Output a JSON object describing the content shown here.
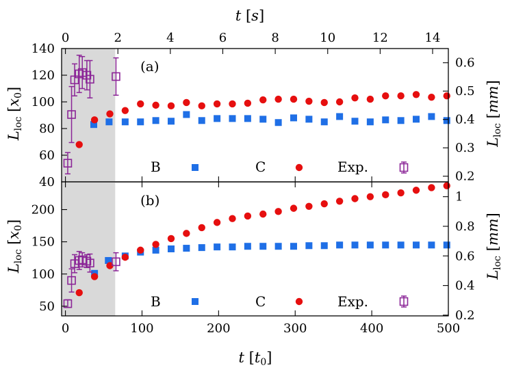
{
  "chart_data": [
    {
      "panel": "(a)",
      "type": "scatter",
      "x_bottom_label": "t [t0]",
      "x_top_label": "t [s]",
      "y_left_label": "Lloc [x0]",
      "y_right_label": "Lloc [mm]",
      "xlim": [
        -5,
        500
      ],
      "ylim": [
        40,
        140
      ],
      "y_right_lim": [
        0.18,
        0.65
      ],
      "y_left_ticks": [
        40,
        60,
        80,
        100,
        120,
        140
      ],
      "y_right_ticks": [
        0.2,
        0.3,
        0.4,
        0.5,
        0.6
      ],
      "shaded_region": [
        -5,
        65
      ],
      "legend": [
        "B",
        "C",
        "Exp."
      ],
      "series": [
        {
          "name": "B",
          "marker": "square",
          "color": "#1f6fe6",
          "x": [
            37,
            57,
            78,
            98,
            118,
            138,
            158,
            178,
            198,
            218,
            238,
            258,
            278,
            298,
            318,
            338,
            358,
            378,
            398,
            418,
            438,
            458,
            478,
            498
          ],
          "y": [
            83,
            85,
            85,
            85,
            86,
            85.5,
            90.5,
            86,
            87.5,
            87.5,
            87.5,
            87,
            84.5,
            88,
            87,
            85,
            89,
            85.5,
            85,
            86.5,
            86,
            87,
            89,
            86
          ]
        },
        {
          "name": "C",
          "marker": "circle",
          "color": "#e60f0f",
          "x": [
            18,
            38,
            58,
            78,
            98,
            118,
            138,
            158,
            178,
            198,
            218,
            238,
            258,
            278,
            298,
            318,
            338,
            358,
            378,
            398,
            418,
            438,
            458,
            478,
            498
          ],
          "y": [
            68,
            86.5,
            91,
            93.5,
            98.5,
            97.5,
            97,
            99.5,
            97,
            98.5,
            98.5,
            99,
            101.5,
            102,
            102,
            100.5,
            99.5,
            100,
            103,
            102,
            104.5,
            104.5,
            105.5,
            103.5,
            104.5
          ]
        },
        {
          "name": "Exp.",
          "marker": "open-square",
          "color": "#8b2597",
          "x": [
            3,
            8,
            12,
            18,
            22,
            28,
            32,
            66
          ],
          "y": [
            54,
            90.5,
            116.5,
            121,
            122,
            120,
            117,
            119
          ],
          "yerr": [
            8,
            21,
            12,
            14,
            12,
            11,
            14,
            14
          ]
        }
      ]
    },
    {
      "panel": "(b)",
      "type": "scatter",
      "x_bottom_label": "t [t0]",
      "y_left_label": "Lloc [x0]",
      "y_right_label": "Lloc [mm]",
      "xlim": [
        -5,
        500
      ],
      "ylim": [
        35,
        243
      ],
      "y_right_lim": [
        0.195,
        1.1
      ],
      "x_ticks": [
        0,
        100,
        200,
        300,
        400,
        500
      ],
      "y_left_ticks": [
        50,
        100,
        150,
        200
      ],
      "y_right_ticks": [
        0.2,
        0.4,
        0.6,
        0.8,
        1.0
      ],
      "shaded_region": [
        -5,
        65
      ],
      "legend": [
        "B",
        "C",
        "Exp."
      ],
      "series": [
        {
          "name": "B",
          "marker": "square",
          "color": "#1f6fe6",
          "x": [
            38,
            56,
            78,
            98,
            118,
            138,
            158,
            178,
            198,
            218,
            238,
            258,
            278,
            298,
            318,
            338,
            358,
            378,
            398,
            418,
            438,
            458,
            478,
            498
          ],
          "y": [
            101,
            121,
            128,
            134,
            137,
            139,
            140,
            141,
            142,
            142,
            143,
            143,
            143,
            143,
            144,
            144,
            145,
            145,
            145,
            145,
            145,
            145,
            145,
            145
          ]
        },
        {
          "name": "C",
          "marker": "circle",
          "color": "#e60f0f",
          "x": [
            18,
            38,
            58,
            78,
            98,
            118,
            138,
            158,
            178,
            198,
            218,
            238,
            258,
            278,
            298,
            318,
            338,
            358,
            378,
            398,
            418,
            438,
            458,
            478,
            498
          ],
          "y": [
            71,
            96,
            113,
            126,
            137,
            146,
            155,
            163,
            172,
            180,
            186,
            190,
            193,
            197,
            202,
            205,
            209,
            213,
            217,
            220,
            223,
            226,
            230,
            234,
            237
          ]
        },
        {
          "name": "Exp.",
          "marker": "open-square",
          "color": "#8b2597",
          "x": [
            3,
            8,
            12,
            18,
            22,
            28,
            32,
            66
          ],
          "y": [
            54,
            90,
            116,
            121,
            122,
            120,
            117,
            119
          ],
          "yerr": [
            6,
            18,
            14,
            14,
            11,
            10,
            14,
            14
          ]
        }
      ]
    }
  ],
  "top_axis": {
    "label": "t [s]",
    "tick_values": [
      0,
      2,
      4,
      6,
      8,
      10,
      12,
      14
    ],
    "seconds_per_t0": 0.0292
  },
  "bottom_axis": {
    "label": "t [t0]",
    "tick_values": [
      0,
      100,
      200,
      300,
      400,
      500
    ]
  },
  "labels": {
    "panel_a": "(a)",
    "panel_b": "(b)",
    "legend_b": "B",
    "legend_c": "C",
    "legend_exp": "Exp."
  }
}
